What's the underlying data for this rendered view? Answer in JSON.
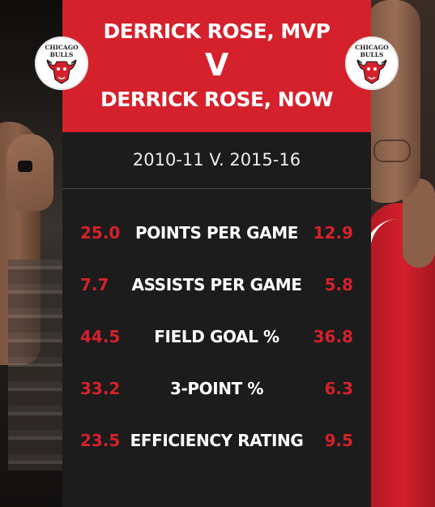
{
  "header": {
    "title_line1": "DERRICK ROSE, MVP",
    "versus": "V",
    "title_line2": "DERRICK ROSE, NOW"
  },
  "logo": {
    "line1": "CHICAGO",
    "line2": "BULLS"
  },
  "seasons": "2010-11 V. 2015-16",
  "stats": [
    {
      "label": "POINTS PER GAME",
      "mvp": "25.0",
      "now": "12.9"
    },
    {
      "label": "ASSISTS PER GAME",
      "mvp": "7.7",
      "now": "5.8"
    },
    {
      "label": "FIELD GOAL %",
      "mvp": "44.5",
      "now": "36.8"
    },
    {
      "label": "3-POINT %",
      "mvp": "33.2",
      "now": "6.3"
    },
    {
      "label": "EFFICIENCY RATING",
      "mvp": "23.5",
      "now": "9.5"
    }
  ],
  "colors": {
    "accent_red": "#d5212c",
    "panel_dark": "#1c1c1c",
    "text_white": "#ffffff"
  }
}
